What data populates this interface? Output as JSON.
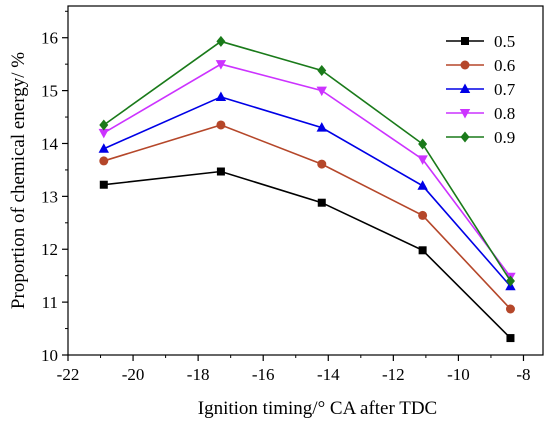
{
  "chart_data": {
    "type": "line",
    "xlabel": "Ignition timing/° CA after TDC",
    "ylabel": "Proportion of chemical energy/ %",
    "xlim": [
      -22,
      -7.4
    ],
    "ylim": [
      10,
      16.6
    ],
    "x_ticks": [
      -22,
      -20,
      -18,
      -16,
      -14,
      -12,
      -10,
      -8
    ],
    "y_ticks": [
      10,
      11,
      12,
      13,
      14,
      15,
      16
    ],
    "x_tick_labels": [
      "-22",
      "-20",
      "-18",
      "-16",
      "-14",
      "-12",
      "-10",
      "-8"
    ],
    "y_tick_labels": [
      "10",
      "11",
      "12",
      "13",
      "14",
      "15",
      "16"
    ],
    "x": [
      -20.9,
      -17.3,
      -14.2,
      -11.1,
      -8.4
    ],
    "legend_position": "top-right",
    "grid": false,
    "series": [
      {
        "name": "0.5",
        "color": "#000000",
        "marker": "square",
        "values": [
          13.22,
          13.47,
          12.88,
          11.98,
          10.32
        ]
      },
      {
        "name": "0.6",
        "color": "#b5472a",
        "marker": "circle",
        "values": [
          13.67,
          14.35,
          13.61,
          12.64,
          10.87
        ]
      },
      {
        "name": "0.7",
        "color": "#0000e6",
        "marker": "triangle-up",
        "values": [
          13.9,
          14.88,
          14.3,
          13.2,
          11.3
        ]
      },
      {
        "name": "0.8",
        "color": "#cc33ff",
        "marker": "triangle-down",
        "values": [
          14.2,
          15.5,
          15.0,
          13.7,
          11.48
        ]
      },
      {
        "name": "0.9",
        "color": "#1a7a1a",
        "marker": "diamond",
        "values": [
          14.35,
          15.93,
          15.38,
          13.99,
          11.4
        ]
      }
    ]
  }
}
